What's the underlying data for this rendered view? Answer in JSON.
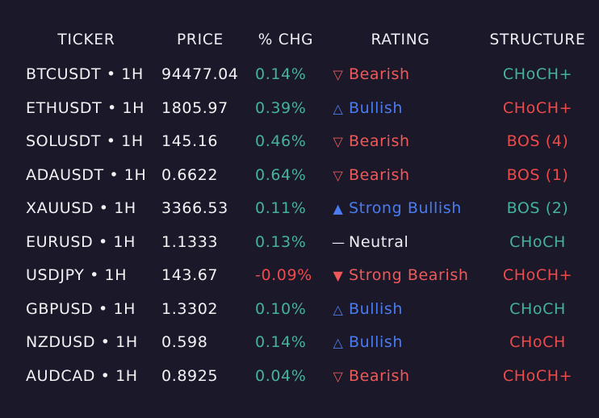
{
  "colors": {
    "background": "#1b1829",
    "positive": "#45b29d",
    "negative": "#f04a4a",
    "bullish": "#4a7cf0",
    "bearish": "#ee5a5a",
    "neutral": "#eeeef2"
  },
  "headers": {
    "ticker": "TICKER",
    "price": "PRICE",
    "chg": "% CHG",
    "rating": "RATING",
    "structure": "STRUCTURE"
  },
  "rows": [
    {
      "ticker": "BTCUSDT • 1H",
      "price": "94477.04",
      "chg": "0.14%",
      "chg_dir": "pos",
      "rating": "Bearish",
      "rating_icon": "triangle-down-outline-icon",
      "rating_glyph": "▽",
      "rating_tone": "bearish",
      "structure": "CHoCH+",
      "structure_tone": "teal"
    },
    {
      "ticker": "ETHUSDT • 1H",
      "price": "1805.97",
      "chg": "0.39%",
      "chg_dir": "pos",
      "rating": "Bullish",
      "rating_icon": "triangle-up-outline-icon",
      "rating_glyph": "△",
      "rating_tone": "bullish",
      "structure": "CHoCH+",
      "structure_tone": "red"
    },
    {
      "ticker": "SOLUSDT • 1H",
      "price": "145.16",
      "chg": "0.46%",
      "chg_dir": "pos",
      "rating": "Bearish",
      "rating_icon": "triangle-down-outline-icon",
      "rating_glyph": "▽",
      "rating_tone": "bearish",
      "structure": "BOS (4)",
      "structure_tone": "red"
    },
    {
      "ticker": "ADAUSDT • 1H",
      "price": "0.6622",
      "chg": "0.64%",
      "chg_dir": "pos",
      "rating": "Bearish",
      "rating_icon": "triangle-down-outline-icon",
      "rating_glyph": "▽",
      "rating_tone": "bearish",
      "structure": "BOS (1)",
      "structure_tone": "red"
    },
    {
      "ticker": "XAUUSD • 1H",
      "price": "3366.53",
      "chg": "0.11%",
      "chg_dir": "pos",
      "rating": "Strong Bullish",
      "rating_icon": "triangle-up-filled-icon",
      "rating_glyph": "▲",
      "rating_tone": "bullish",
      "structure": "BOS (2)",
      "structure_tone": "teal"
    },
    {
      "ticker": "EURUSD • 1H",
      "price": "1.1333",
      "chg": "0.13%",
      "chg_dir": "pos",
      "rating": "Neutral",
      "rating_icon": "dash-icon",
      "rating_glyph": "—",
      "rating_tone": "neutral",
      "structure": "CHoCH",
      "structure_tone": "teal"
    },
    {
      "ticker": "USDJPY • 1H",
      "price": "143.67",
      "chg": "-0.09%",
      "chg_dir": "neg",
      "rating": "Strong Bearish",
      "rating_icon": "triangle-down-filled-icon",
      "rating_glyph": "▼",
      "rating_tone": "bearish",
      "structure": "CHoCH+",
      "structure_tone": "red"
    },
    {
      "ticker": "GBPUSD • 1H",
      "price": "1.3302",
      "chg": "0.10%",
      "chg_dir": "pos",
      "rating": "Bullish",
      "rating_icon": "triangle-up-outline-icon",
      "rating_glyph": "△",
      "rating_tone": "bullish",
      "structure": "CHoCH",
      "structure_tone": "teal"
    },
    {
      "ticker": "NZDUSD • 1H",
      "price": "0.598",
      "chg": "0.14%",
      "chg_dir": "pos",
      "rating": "Bullish",
      "rating_icon": "triangle-up-outline-icon",
      "rating_glyph": "△",
      "rating_tone": "bullish",
      "structure": "CHoCH",
      "structure_tone": "red"
    },
    {
      "ticker": "AUDCAD • 1H",
      "price": "0.8925",
      "chg": "0.04%",
      "chg_dir": "pos",
      "rating": "Bearish",
      "rating_icon": "triangle-down-outline-icon",
      "rating_glyph": "▽",
      "rating_tone": "bearish",
      "structure": "CHoCH+",
      "structure_tone": "red"
    }
  ]
}
